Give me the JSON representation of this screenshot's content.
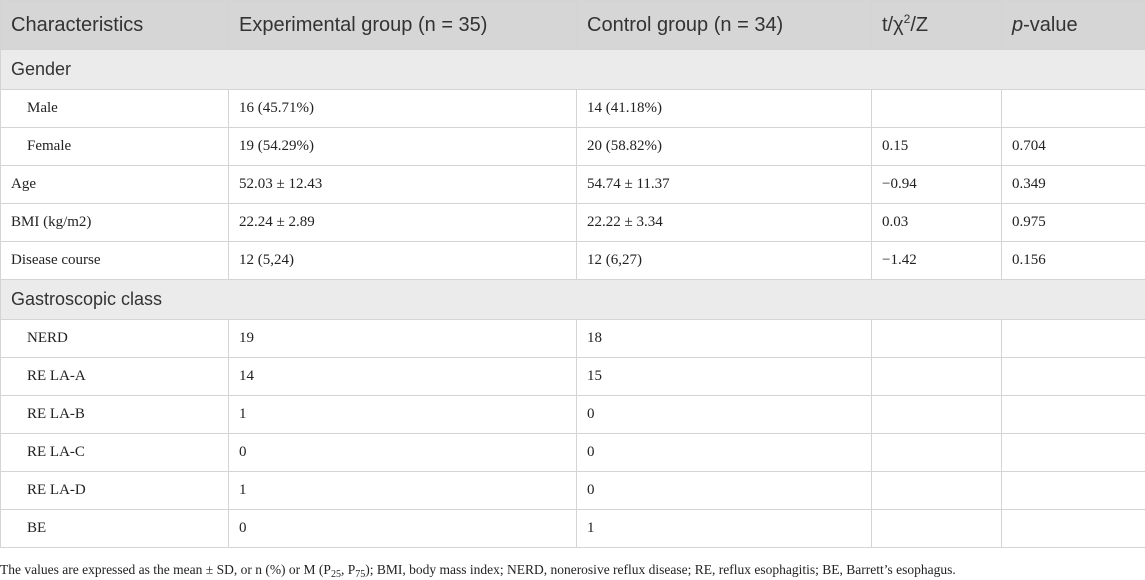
{
  "header": {
    "characteristics": "Characteristics",
    "experimental": "Experimental group (n = 35)",
    "control": "Control group (n = 34)",
    "stat_prefix": "t/χ",
    "stat_sup": "2",
    "stat_suffix": "/Z",
    "pvalue_italic": "p",
    "pvalue_rest": "-value"
  },
  "rows": [
    {
      "type": "section",
      "label": "Gender"
    },
    {
      "type": "data",
      "indent": true,
      "label": "Male",
      "exp": "16 (45.71%)",
      "ctrl": "14 (41.18%)",
      "stat": "",
      "p": ""
    },
    {
      "type": "data",
      "indent": true,
      "label": "Female",
      "exp": "19 (54.29%)",
      "ctrl": "20 (58.82%)",
      "stat": "0.15",
      "p": "0.704"
    },
    {
      "type": "data",
      "indent": false,
      "label": "Age",
      "exp": "52.03 ± 12.43",
      "ctrl": "54.74 ± 11.37",
      "stat": "−0.94",
      "p": "0.349"
    },
    {
      "type": "data",
      "indent": false,
      "label": "BMI (kg/m2)",
      "exp": "22.24 ± 2.89",
      "ctrl": "22.22 ± 3.34",
      "stat": "0.03",
      "p": "0.975"
    },
    {
      "type": "data",
      "indent": false,
      "label": "Disease course",
      "exp": "12 (5,24)",
      "ctrl": "12 (6,27)",
      "stat": "−1.42",
      "p": "0.156"
    },
    {
      "type": "section",
      "label": "Gastroscopic class"
    },
    {
      "type": "data",
      "indent": true,
      "label": "NERD",
      "exp": "19",
      "ctrl": "18",
      "stat": "",
      "p": ""
    },
    {
      "type": "data",
      "indent": true,
      "label": "RE LA-A",
      "exp": "14",
      "ctrl": "15",
      "stat": "",
      "p": ""
    },
    {
      "type": "data",
      "indent": true,
      "label": "RE LA-B",
      "exp": "1",
      "ctrl": "0",
      "stat": "",
      "p": ""
    },
    {
      "type": "data",
      "indent": true,
      "label": "RE LA-C",
      "exp": "0",
      "ctrl": "0",
      "stat": "",
      "p": ""
    },
    {
      "type": "data",
      "indent": true,
      "label": "RE LA-D",
      "exp": "1",
      "ctrl": "0",
      "stat": "",
      "p": ""
    },
    {
      "type": "data",
      "indent": true,
      "label": "BE",
      "exp": "0",
      "ctrl": "1",
      "stat": "",
      "p": ""
    }
  ],
  "footnote": {
    "part1": "The values are expressed as the mean ± SD, or n (%) or M (P",
    "sub1": "25",
    "part2": ", P",
    "sub2": "75",
    "part3": "); BMI, body mass index; NERD, nonerosive reflux disease; RE, reflux esophagitis; BE, Barrett’s esophagus."
  }
}
